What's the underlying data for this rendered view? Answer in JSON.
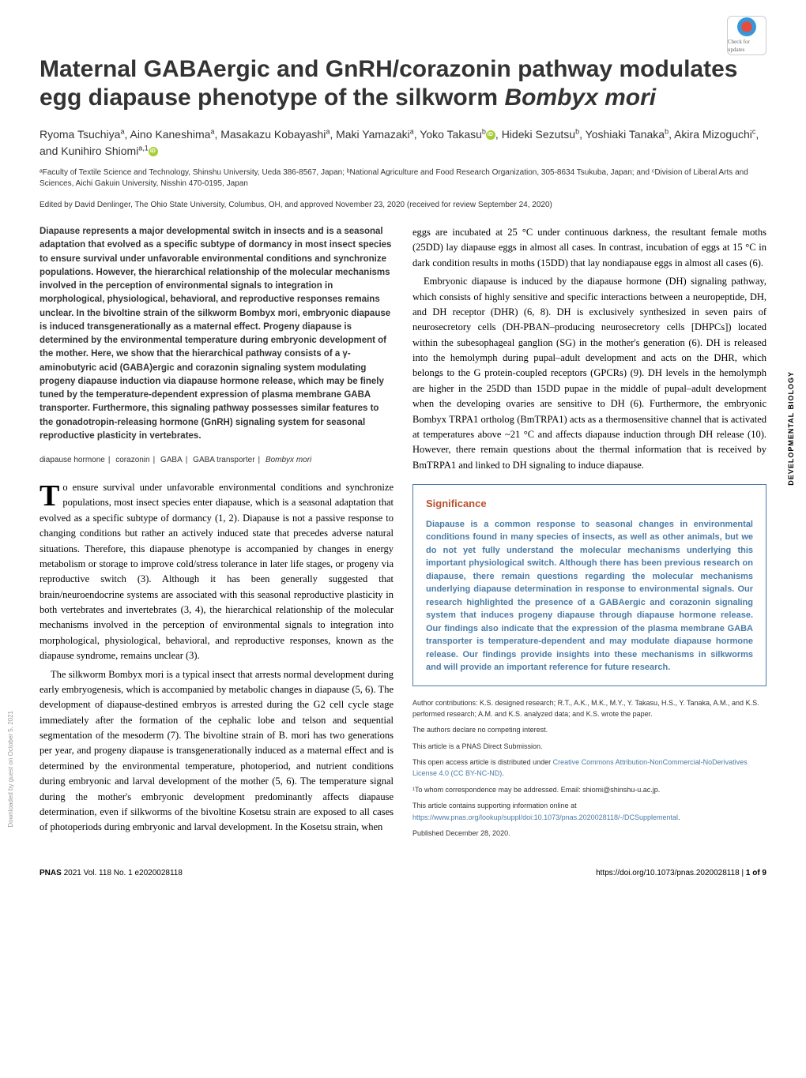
{
  "check_updates_label": "Check for updates",
  "title_main": "Maternal GABAergic and GnRH/corazonin pathway modulates egg diapause phenotype of the silkworm",
  "title_species": "Bombyx mori",
  "authors_html": "Ryoma Tsuchiya<sup>a</sup>, Aino Kaneshima<sup>a</sup>, Masakazu Kobayashi<sup>a</sup>, Maki Yamazaki<sup>a</sup>, Yoko Takasu<sup>b</sup>, Hideki Sezutsu<sup>b</sup>, Yoshiaki Tanaka<sup>b</sup>, Akira Mizoguchi<sup>c</sup>, and Kunihiro Shiomi<sup>a,1</sup>",
  "affiliations": "ᵃFaculty of Textile Science and Technology, Shinshu University, Ueda 386-8567, Japan; ᵇNational Agriculture and Food Research Organization, 305-8634 Tsukuba, Japan; and ᶜDivision of Liberal Arts and Sciences, Aichi Gakuin University, Nisshin 470-0195, Japan",
  "edited_by": "Edited by David Denlinger, The Ohio State University, Columbus, OH, and approved November 23, 2020 (received for review September 24, 2020)",
  "abstract": "Diapause represents a major developmental switch in insects and is a seasonal adaptation that evolved as a specific subtype of dormancy in most insect species to ensure survival under unfavorable environmental conditions and synchronize populations. However, the hierarchical relationship of the molecular mechanisms involved in the perception of environmental signals to integration in morphological, physiological, behavioral, and reproductive responses remains unclear. In the bivoltine strain of the silkworm Bombyx mori, embryonic diapause is induced transgenerationally as a maternal effect. Progeny diapause is determined by the environmental temperature during embryonic development of the mother. Here, we show that the hierarchical pathway consists of a γ-aminobutyric acid (GABA)ergic and corazonin signaling system modulating progeny diapause induction via diapause hormone release, which may be finely tuned by the temperature-dependent expression of plasma membrane GABA transporter. Furthermore, this signaling pathway possesses similar features to the gonadotropin-releasing hormone (GnRH) signaling system for seasonal reproductive plasticity in vertebrates.",
  "keywords": {
    "k1": "diapause hormone",
    "k2": "corazonin",
    "k3": "GABA",
    "k4": "GABA transporter",
    "k5": "Bombyx mori"
  },
  "body": {
    "p1_dropcap": "T",
    "p1": "o ensure survival under unfavorable environmental conditions and synchronize populations, most insect species enter diapause, which is a seasonal adaptation that evolved as a specific subtype of dormancy (1, 2). Diapause is not a passive response to changing conditions but rather an actively induced state that precedes adverse natural situations. Therefore, this diapause phenotype is accompanied by changes in energy metabolism or storage to improve cold/stress tolerance in later life stages, or progeny via reproductive switch (3). Although it has been generally suggested that brain/neuroendocrine systems are associated with this seasonal reproductive plasticity in both vertebrates and invertebrates (3, 4), the hierarchical relationship of the molecular mechanisms involved in the perception of environmental signals to integration into morphological, physiological, behavioral, and reproductive responses, known as the diapause syndrome, remains unclear (3).",
    "p2": "The silkworm Bombyx mori is a typical insect that arrests normal development during early embryogenesis, which is accompanied by metabolic changes in diapause (5, 6). The development of diapause-destined embryos is arrested during the G2 cell cycle stage immediately after the formation of the cephalic lobe and telson and sequential segmentation of the mesoderm (7). The bivoltine strain of B. mori has two generations per year, and progeny diapause is transgenerationally induced as a maternal effect and is determined by the environmental temperature, photoperiod, and nutrient conditions during embryonic and larval development of the mother (5, 6). The temperature signal during the mother's embryonic development predominantly affects diapause determination, even if silkworms of the bivoltine Kosetsu strain are exposed to all cases of photoperiods during embryonic and larval development. In the Kosetsu strain, when",
    "p3": "eggs are incubated at 25 °C under continuous darkness, the resultant female moths (25DD) lay diapause eggs in almost all cases. In contrast, incubation of eggs at 15 °C in dark condition results in moths (15DD) that lay nondiapause eggs in almost all cases (6).",
    "p4": "Embryonic diapause is induced by the diapause hormone (DH) signaling pathway, which consists of highly sensitive and specific interactions between a neuropeptide, DH, and DH receptor (DHR) (6, 8). DH is exclusively synthesized in seven pairs of neurosecretory cells (DH-PBAN–producing neurosecretory cells [DHPCs]) located within the subesophageal ganglion (SG) in the mother's generation (6). DH is released into the hemolymph during pupal–adult development and acts on the DHR, which belongs to the G protein-coupled receptors (GPCRs) (9). DH levels in the hemolymph are higher in the 25DD than 15DD pupae in the middle of pupal–adult development when the developing ovaries are sensitive to DH (6). Furthermore, the embryonic Bombyx TRPA1 ortholog (BmTRPA1) acts as a thermosensitive channel that is activated at temperatures above ~21 °C and affects diapause induction through DH release (10). However, there remain questions about the thermal information that is received by BmTRPA1 and linked to DH signaling to induce diapause."
  },
  "significance": {
    "heading": "Significance",
    "text": "Diapause is a common response to seasonal changes in environmental conditions found in many species of insects, as well as other animals, but we do not yet fully understand the molecular mechanisms underlying this important physiological switch. Although there has been previous research on diapause, there remain questions regarding the molecular mechanisms underlying diapause determination in response to environmental signals. Our research highlighted the presence of a GABAergic and corazonin signaling system that induces progeny diapause through diapause hormone release. Our findings also indicate that the expression of the plasma membrane GABA transporter is temperature-dependent and may modulate diapause hormone release. Our findings provide insights into these mechanisms in silkworms and will provide an important reference for future research."
  },
  "meta": {
    "author_contrib": "Author contributions: K.S. designed research; R.T., A.K., M.K., M.Y., Y. Takasu, H.S., Y. Tanaka, A.M., and K.S. performed research; A.M. and K.S. analyzed data; and K.S. wrote the paper.",
    "competing": "The authors declare no competing interest.",
    "direct": "This article is a PNAS Direct Submission.",
    "license_pre": "This open access article is distributed under ",
    "license_link": "Creative Commons Attribution-NonCommercial-NoDerivatives License 4.0 (CC BY-NC-ND)",
    "license_post": ".",
    "correspondence": "¹To whom correspondence may be addressed. Email: shiomi@shinshu-u.ac.jp.",
    "supporting_pre": "This article contains supporting information online at ",
    "supporting_link": "https://www.pnas.org/lookup/suppl/doi:10.1073/pnas.2020028118/-/DCSupplemental",
    "supporting_post": ".",
    "published": "Published December 28, 2020."
  },
  "side_label": "DEVELOPMENTAL BIOLOGY",
  "footer": {
    "left": "PNAS 2021 Vol. 118 No. 1 e2020028118",
    "right": "https://doi.org/10.1073/pnas.2020028118 | 1 of 9"
  },
  "left_sidebar": "Downloaded by guest on October 5, 2021",
  "colors": {
    "significance_border": "#4a7ba6",
    "significance_heading": "#b8512e",
    "significance_text": "#4a7ba6",
    "link": "#4a7ba6",
    "orcid": "#a6ce39"
  },
  "typography": {
    "title_fontsize": 30,
    "authors_fontsize": 14,
    "affiliations_fontsize": 10,
    "abstract_fontsize": 11.5,
    "body_fontsize": 12.5,
    "meta_fontsize": 9
  }
}
